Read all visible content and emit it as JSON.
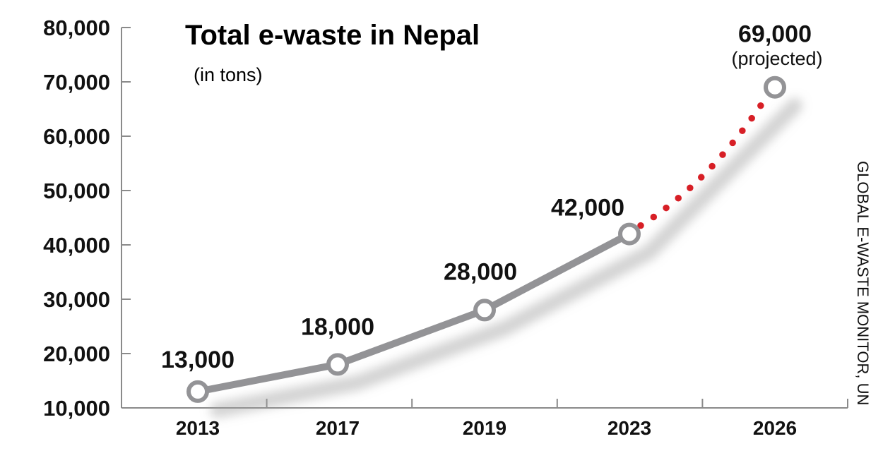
{
  "chart_data": {
    "type": "line",
    "title": "Total e-waste in Nepal",
    "subtitle": "(in tons)",
    "x": [
      "2013",
      "2017",
      "2019",
      "2023",
      "2026"
    ],
    "series": [
      {
        "values": [
          13000,
          18000,
          28000,
          42000,
          69000
        ]
      }
    ],
    "data_labels": [
      "13,000",
      "18,000",
      "28,000",
      "42,000",
      "69,000"
    ],
    "annotation": "(projected)",
    "projected_from": "2023",
    "y_ticks": [
      "10,000",
      "20,000",
      "30,000",
      "40,000",
      "50,000",
      "60,000",
      "70,000",
      "80,000"
    ],
    "ylim": [
      10000,
      80000
    ],
    "source": "GLOBAL E-WASTE MONITOR, UN",
    "colors": {
      "line": "#939396",
      "projection": "#d71f26",
      "marker_fill": "#ffffff",
      "axis": "#8a8a8a"
    }
  }
}
